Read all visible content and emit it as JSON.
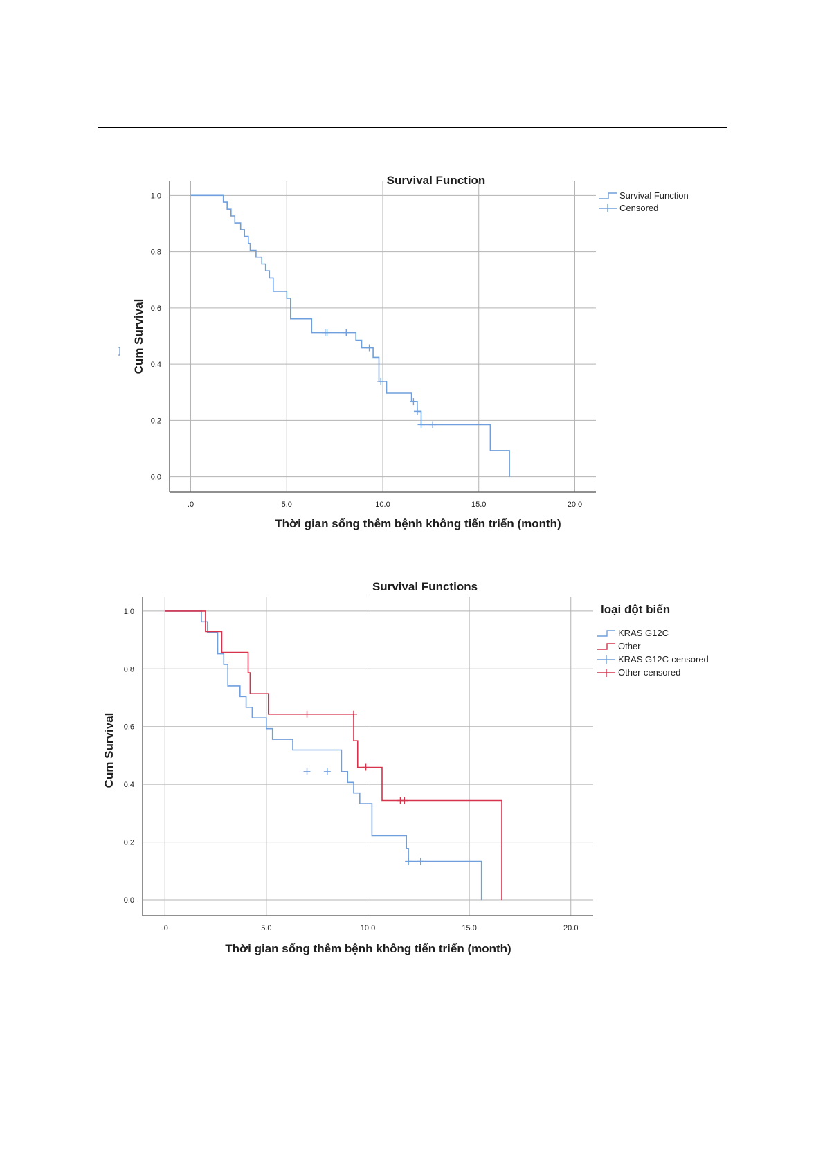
{
  "page": {
    "margin_mark": "]"
  },
  "colors": {
    "km_blue": "#6f9fdc",
    "other_red": "#d6334d",
    "grid": "#b3b3b3",
    "axis": "#6b6b6b",
    "text": "#222222",
    "rule": "#000000"
  },
  "chart_data": [
    {
      "type": "line",
      "step": "post",
      "title": "Survival Function",
      "xlabel": "Thời gian sống thêm bệnh không tiến triển  (month)",
      "ylabel": "Cum Survival",
      "xlim": [
        -1.1,
        21.1
      ],
      "ylim": [
        -0.055,
        1.05
      ],
      "xticks": [
        0,
        5,
        10,
        15,
        20
      ],
      "xtick_labels": [
        ".0",
        "5.0",
        "10.0",
        "15.0",
        "20.0"
      ],
      "yticks": [
        0,
        0.2,
        0.4,
        0.6,
        0.8,
        1.0
      ],
      "ytick_labels": [
        "0.0",
        "0.2",
        "0.4",
        "0.6",
        "0.8",
        "1.0"
      ],
      "grid": true,
      "legend_position": "top-right",
      "legend_title": "",
      "legend_items": [
        {
          "label": "Survival Function",
          "kind": "line",
          "color": "#6f9fdc"
        },
        {
          "label": "Censored",
          "kind": "censor",
          "color": "#6f9fdc"
        }
      ],
      "series": [
        {
          "name": "Survival Function",
          "color": "#6f9fdc",
          "x": [
            0,
            1.7,
            1.9,
            2.1,
            2.3,
            2.6,
            2.8,
            3.0,
            3.1,
            3.4,
            3.7,
            3.9,
            4.1,
            4.3,
            5.0,
            5.2,
            6.3,
            8.6,
            8.9,
            9.5,
            9.8,
            10.2,
            11.5,
            11.8,
            12.0,
            15.6,
            16.6
          ],
          "y": [
            1.0,
            0.976,
            0.951,
            0.927,
            0.902,
            0.878,
            0.854,
            0.829,
            0.805,
            0.78,
            0.756,
            0.732,
            0.707,
            0.659,
            0.634,
            0.561,
            0.512,
            0.485,
            0.458,
            0.424,
            0.339,
            0.297,
            0.267,
            0.232,
            0.185,
            0.093,
            0.0
          ],
          "censored_x": [
            7.0,
            7.1,
            8.1,
            9.3,
            9.9,
            11.6,
            11.8,
            12.0,
            12.6
          ],
          "censored_y": [
            0.512,
            0.512,
            0.512,
            0.458,
            0.339,
            0.267,
            0.232,
            0.185,
            0.185
          ]
        }
      ]
    },
    {
      "type": "line",
      "step": "post",
      "title": "Survival Functions",
      "xlabel": "Thời gian sống thêm bệnh không tiến triển  (month)",
      "ylabel": "Cum Survival",
      "xlim": [
        -1.1,
        21.1
      ],
      "ylim": [
        -0.055,
        1.05
      ],
      "xticks": [
        0,
        5,
        10,
        15,
        20
      ],
      "xtick_labels": [
        ".0",
        "5.0",
        "10.0",
        "15.0",
        "20.0"
      ],
      "yticks": [
        0,
        0.2,
        0.4,
        0.6,
        0.8,
        1.0
      ],
      "ytick_labels": [
        "0.0",
        "0.2",
        "0.4",
        "0.6",
        "0.8",
        "1.0"
      ],
      "grid": true,
      "legend_position": "top-right",
      "legend_title": "loại đột biến",
      "legend_items": [
        {
          "label": "KRAS G12C",
          "kind": "line",
          "color": "#6f9fdc"
        },
        {
          "label": "Other",
          "kind": "line",
          "color": "#d6334d"
        },
        {
          "label": "KRAS G12C-censored",
          "kind": "censor",
          "color": "#6f9fdc"
        },
        {
          "label": "Other-censored",
          "kind": "censor",
          "color": "#d6334d"
        }
      ],
      "series": [
        {
          "name": "KRAS G12C",
          "color": "#6f9fdc",
          "x": [
            0,
            1.8,
            2.1,
            2.6,
            2.9,
            3.1,
            3.7,
            4.0,
            4.3,
            5.0,
            5.3,
            6.3,
            8.7,
            9.0,
            9.3,
            9.6,
            10.2,
            11.9,
            12.0,
            15.6
          ],
          "y": [
            1.0,
            0.963,
            0.926,
            0.852,
            0.815,
            0.741,
            0.704,
            0.667,
            0.63,
            0.593,
            0.556,
            0.519,
            0.444,
            0.407,
            0.37,
            0.333,
            0.222,
            0.178,
            0.133,
            0.0
          ],
          "censored_x": [
            7.0,
            8.0,
            12.0,
            12.6
          ],
          "censored_y": [
            0.444,
            0.444,
            0.133,
            0.133
          ]
        },
        {
          "name": "Other",
          "color": "#d6334d",
          "x": [
            0,
            2.0,
            2.8,
            4.1,
            4.2,
            5.1,
            9.3,
            9.5,
            9.8,
            10.7,
            16.6
          ],
          "y": [
            1.0,
            0.929,
            0.857,
            0.786,
            0.714,
            0.643,
            0.551,
            0.459,
            0.459,
            0.344,
            0.0
          ],
          "censored_x": [
            7.0,
            9.3,
            9.9,
            11.6,
            11.8
          ],
          "censored_y": [
            0.643,
            0.643,
            0.459,
            0.344,
            0.344
          ]
        }
      ]
    }
  ]
}
